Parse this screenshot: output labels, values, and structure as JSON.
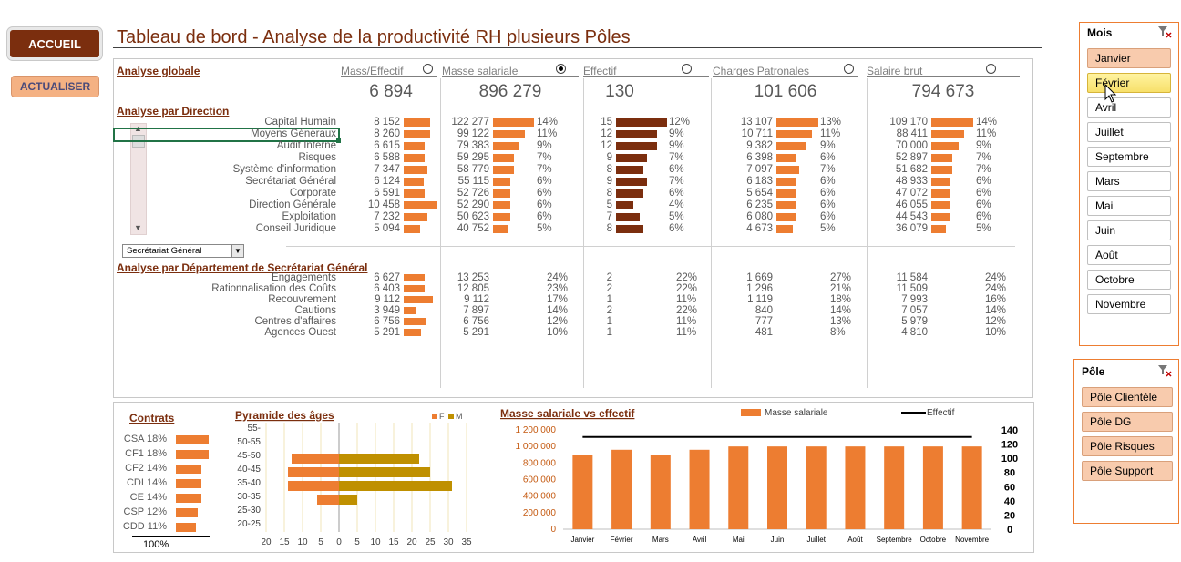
{
  "buttons": {
    "accueil": "ACCUEIL",
    "actualiser": "ACTUALISER"
  },
  "title": "Tableau de bord - Analyse de la productivité RH plusieurs Pôles",
  "global": {
    "section": "Analyse globale",
    "columns": [
      {
        "label": "Mass/Effectif",
        "value": "6 894",
        "selected": false
      },
      {
        "label": "Masse salariale",
        "value": "896 279",
        "selected": true
      },
      {
        "label": "Effectif",
        "value": "130",
        "selected": false
      },
      {
        "label": "Charges Patronales",
        "value": "101 606",
        "selected": false
      },
      {
        "label": "Salaire brut",
        "value": "794 673",
        "selected": false
      }
    ]
  },
  "direction": {
    "section": "Analyse par Direction",
    "selected_row": "Moyens Généraux",
    "dropdown_value": "Secrétariat Général",
    "rows": [
      {
        "name": "Capital Humain",
        "me": "8 152",
        "me_v": 8152,
        "ms": "122 277",
        "ms_p": "14%",
        "ms_v": 14,
        "ef": "15",
        "ef_p": "12%",
        "ef_v": 15,
        "cp": "13 107",
        "cp_p": "13%",
        "cp_v": 13,
        "sb": "109 170",
        "sb_p": "14%",
        "sb_v": 14
      },
      {
        "name": "Moyens Généraux",
        "me": "8 260",
        "me_v": 8260,
        "ms": "99 122",
        "ms_p": "11%",
        "ms_v": 11,
        "ef": "12",
        "ef_p": "9%",
        "ef_v": 12,
        "cp": "10 711",
        "cp_p": "11%",
        "cp_v": 11,
        "sb": "88 411",
        "sb_p": "11%",
        "sb_v": 11
      },
      {
        "name": "Audit Interne",
        "me": "6 615",
        "me_v": 6615,
        "ms": "79 383",
        "ms_p": "9%",
        "ms_v": 9,
        "ef": "12",
        "ef_p": "9%",
        "ef_v": 12,
        "cp": "9 382",
        "cp_p": "9%",
        "cp_v": 9,
        "sb": "70 000",
        "sb_p": "9%",
        "sb_v": 9
      },
      {
        "name": "Risques",
        "me": "6 588",
        "me_v": 6588,
        "ms": "59 295",
        "ms_p": "7%",
        "ms_v": 7,
        "ef": "9",
        "ef_p": "7%",
        "ef_v": 9,
        "cp": "6 398",
        "cp_p": "6%",
        "cp_v": 6,
        "sb": "52 897",
        "sb_p": "7%",
        "sb_v": 7
      },
      {
        "name": "Système d'information",
        "me": "7 347",
        "me_v": 7347,
        "ms": "58 779",
        "ms_p": "7%",
        "ms_v": 7,
        "ef": "8",
        "ef_p": "6%",
        "ef_v": 8,
        "cp": "7 097",
        "cp_p": "7%",
        "cp_v": 7,
        "sb": "51 682",
        "sb_p": "7%",
        "sb_v": 7
      },
      {
        "name": "Secrétariat Général",
        "me": "6 124",
        "me_v": 6124,
        "ms": "55 115",
        "ms_p": "6%",
        "ms_v": 6,
        "ef": "9",
        "ef_p": "7%",
        "ef_v": 9,
        "cp": "6 183",
        "cp_p": "6%",
        "cp_v": 6,
        "sb": "48 933",
        "sb_p": "6%",
        "sb_v": 6
      },
      {
        "name": "Corporate",
        "me": "6 591",
        "me_v": 6591,
        "ms": "52 726",
        "ms_p": "6%",
        "ms_v": 6,
        "ef": "8",
        "ef_p": "6%",
        "ef_v": 8,
        "cp": "5 654",
        "cp_p": "6%",
        "cp_v": 6,
        "sb": "47 072",
        "sb_p": "6%",
        "sb_v": 6
      },
      {
        "name": "Direction Générale",
        "me": "10 458",
        "me_v": 10458,
        "ms": "52 290",
        "ms_p": "6%",
        "ms_v": 6,
        "ef": "5",
        "ef_p": "4%",
        "ef_v": 5,
        "cp": "6 235",
        "cp_p": "6%",
        "cp_v": 6,
        "sb": "46 055",
        "sb_p": "6%",
        "sb_v": 6
      },
      {
        "name": "Exploitation",
        "me": "7 232",
        "me_v": 7232,
        "ms": "50 623",
        "ms_p": "6%",
        "ms_v": 6,
        "ef": "7",
        "ef_p": "5%",
        "ef_v": 7,
        "cp": "6 080",
        "cp_p": "6%",
        "cp_v": 6,
        "sb": "44 543",
        "sb_p": "6%",
        "sb_v": 6
      },
      {
        "name": "Conseil Juridique",
        "me": "5 094",
        "me_v": 5094,
        "ms": "40 752",
        "ms_p": "5%",
        "ms_v": 5,
        "ef": "8",
        "ef_p": "6%",
        "ef_v": 8,
        "cp": "4 673",
        "cp_p": "5%",
        "cp_v": 5,
        "sb": "36 079",
        "sb_p": "5%",
        "sb_v": 5
      }
    ]
  },
  "department": {
    "section": "Analyse par Département de Secrétariat Général",
    "rows": [
      {
        "name": "Engagements",
        "me": "6 627",
        "me_v": 6627,
        "ms": "13 253",
        "ms_p": "24%",
        "ef": "2",
        "ef_p": "22%",
        "cp": "1 669",
        "cp_p": "27%",
        "sb": "11 584",
        "sb_p": "24%"
      },
      {
        "name": "Rationnalisation des Coûts",
        "me": "6 403",
        "me_v": 6403,
        "ms": "12 805",
        "ms_p": "23%",
        "ef": "2",
        "ef_p": "22%",
        "cp": "1 296",
        "cp_p": "21%",
        "sb": "11 509",
        "sb_p": "24%"
      },
      {
        "name": "Recouvrement",
        "me": "9 112",
        "me_v": 9112,
        "ms": "9 112",
        "ms_p": "17%",
        "ef": "1",
        "ef_p": "11%",
        "cp": "1 119",
        "cp_p": "18%",
        "sb": "7 993",
        "sb_p": "16%"
      },
      {
        "name": "Cautions",
        "me": "3 949",
        "me_v": 3949,
        "ms": "7 897",
        "ms_p": "14%",
        "ef": "2",
        "ef_p": "22%",
        "cp": "840",
        "cp_p": "14%",
        "sb": "7 057",
        "sb_p": "14%"
      },
      {
        "name": "Centres d'affaires",
        "me": "6 756",
        "me_v": 6756,
        "ms": "6 756",
        "ms_p": "12%",
        "ef": "1",
        "ef_p": "11%",
        "cp": "777",
        "cp_p": "13%",
        "sb": "5 979",
        "sb_p": "12%"
      },
      {
        "name": "Agences Ouest",
        "me": "5 291",
        "me_v": 5291,
        "ms": "5 291",
        "ms_p": "10%",
        "ef": "1",
        "ef_p": "11%",
        "cp": "481",
        "cp_p": "8%",
        "sb": "4 810",
        "sb_p": "10%"
      }
    ]
  },
  "contrats": {
    "title": "Contrats",
    "total": "100%",
    "items": [
      {
        "label": "CSA 18%",
        "value": 18
      },
      {
        "label": "CF1 18%",
        "value": 18
      },
      {
        "label": "CF2 14%",
        "value": 14
      },
      {
        "label": "CDI 14%",
        "value": 14
      },
      {
        "label": "CE 14%",
        "value": 14
      },
      {
        "label": "CSP 12%",
        "value": 12
      },
      {
        "label": "CDD 11%",
        "value": 11
      }
    ]
  },
  "chart_data": [
    {
      "type": "bar",
      "title": "Pyramide des âges",
      "categories": [
        "55-",
        "50-55",
        "45-50",
        "40-45",
        "35-40",
        "30-35",
        "25-30",
        "20-25"
      ],
      "series": [
        {
          "name": "F",
          "values": [
            0,
            0,
            13,
            14,
            14,
            6,
            0,
            0
          ],
          "color": "#ed7d31"
        },
        {
          "name": "M",
          "values": [
            0,
            0,
            22,
            25,
            31,
            5,
            0,
            0
          ],
          "color": "#bf9000"
        }
      ],
      "xticks": [
        "20",
        "15",
        "10",
        "5",
        "0",
        "5",
        "10",
        "15",
        "20",
        "25",
        "30",
        "35"
      ],
      "xlim": [
        -20,
        35
      ]
    },
    {
      "type": "bar",
      "title": "Masse salariale vs effectif",
      "categories": [
        "Janvier",
        "Février",
        "Mars",
        "Avril",
        "Mai",
        "Juin",
        "Juillet",
        "Août",
        "Septembre",
        "Octobre",
        "Novembre"
      ],
      "series": [
        {
          "name": "Masse salariale",
          "type": "bar",
          "values": [
            896279,
            960000,
            896279,
            960000,
            1000000,
            1000000,
            1000000,
            1000000,
            1000000,
            1000000,
            1000000
          ],
          "color": "#ed7d31"
        },
        {
          "name": "Effectif",
          "type": "line",
          "values": [
            130,
            130,
            130,
            130,
            130,
            130,
            130,
            130,
            130,
            130,
            130
          ],
          "color": "#000000"
        }
      ],
      "y_left_ticks": [
        "0",
        "200 000",
        "400 000",
        "600 000",
        "800 000",
        "1 000 000",
        "1 200 000"
      ],
      "y_left_lim": [
        0,
        1200000
      ],
      "y_right_ticks": [
        "0",
        "20",
        "40",
        "60",
        "80",
        "100",
        "120",
        "140"
      ],
      "y_right_lim": [
        0,
        140
      ],
      "legend": "top"
    }
  ],
  "slicer_mois": {
    "title": "Mois",
    "items": [
      {
        "label": "Janvier",
        "state": "sel"
      },
      {
        "label": "Février",
        "state": "hover"
      },
      {
        "label": "Avril",
        "state": ""
      },
      {
        "label": "Juillet",
        "state": ""
      },
      {
        "label": "Septembre",
        "state": ""
      },
      {
        "label": "Mars",
        "state": ""
      },
      {
        "label": "Mai",
        "state": ""
      },
      {
        "label": "Juin",
        "state": ""
      },
      {
        "label": "Août",
        "state": ""
      },
      {
        "label": "Octobre",
        "state": ""
      },
      {
        "label": "Novembre",
        "state": ""
      }
    ]
  },
  "slicer_pole": {
    "title": "Pôle",
    "items": [
      {
        "label": "Pôle Clientèle",
        "state": "sel"
      },
      {
        "label": "Pôle DG",
        "state": "sel"
      },
      {
        "label": "Pôle Risques",
        "state": "sel"
      },
      {
        "label": "Pôle Support",
        "state": "sel"
      }
    ]
  }
}
